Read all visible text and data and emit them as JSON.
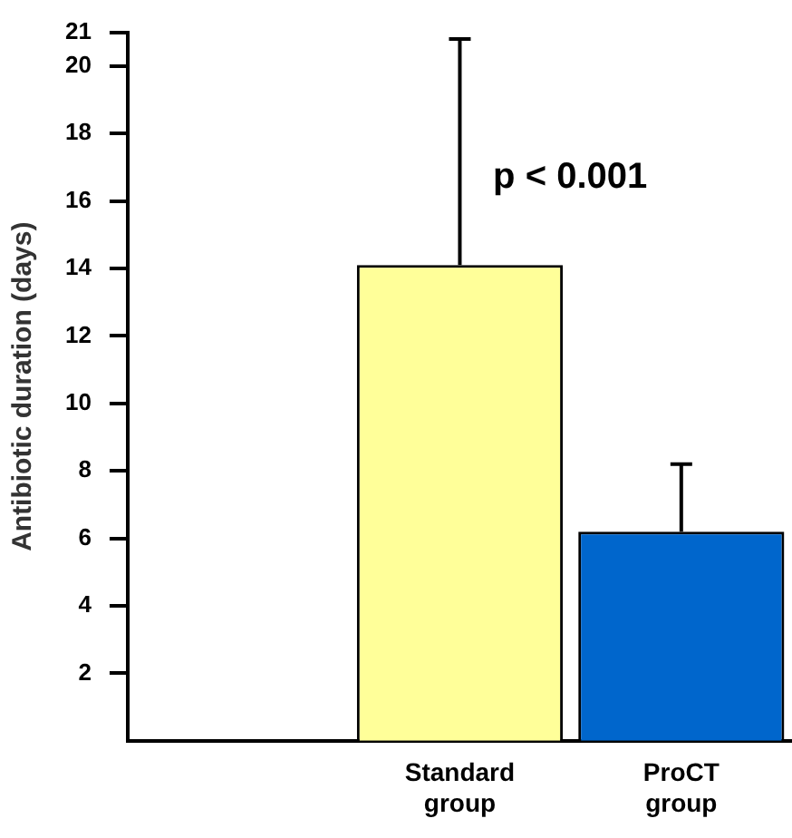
{
  "chart_data": {
    "type": "bar",
    "ylabel": "Antibiotic duration (days)",
    "categories": [
      null,
      "Standard group",
      "ProCT group"
    ],
    "values": [
      null,
      14.1,
      6.2
    ],
    "colors": [
      "#ffff99",
      "#ffff99",
      "#0066cc"
    ],
    "errors": [
      null,
      [
        14.1,
        20.8
      ],
      [
        6.2,
        8.2
      ]
    ],
    "ylim": [
      0,
      21
    ],
    "yticks": [
      2,
      4,
      6,
      8,
      10,
      12,
      14,
      16,
      18,
      20,
      21
    ],
    "annotations": [
      "p < 0.001"
    ],
    "grid": false,
    "legend": false
  }
}
